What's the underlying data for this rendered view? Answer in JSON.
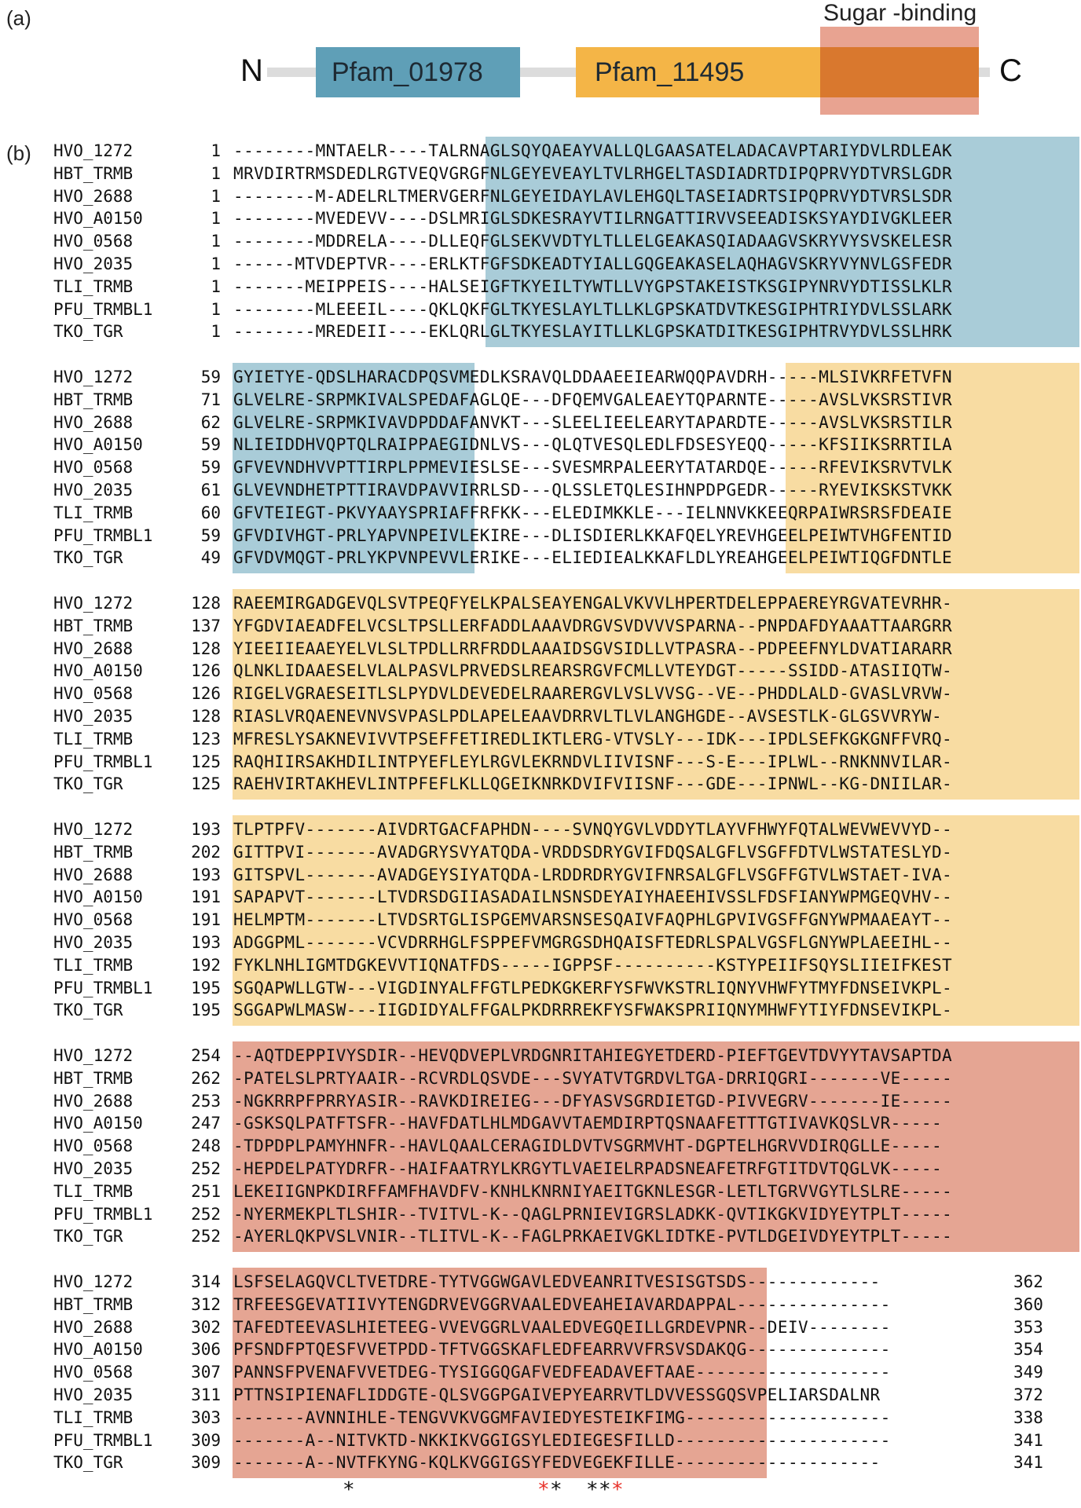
{
  "panel_a": {
    "label": "(a)",
    "n_terminus": "N",
    "c_terminus": "C",
    "domains": [
      {
        "name": "Pfam_01978",
        "color": "#5f9fb7"
      },
      {
        "name": "Pfam_11495",
        "color": "#f4b547"
      }
    ],
    "region": {
      "name": "Sugar -binding",
      "color": "#e8a391"
    },
    "overlap_color": "#d9782e"
  },
  "panel_b": {
    "label": "(b)",
    "colors": {
      "blue": "#a9ccd8",
      "yellow": "#f8dca2",
      "salmon": "#e5a593"
    },
    "blocks": [
      {
        "rows": [
          {
            "name": "HVO_1272",
            "start": "1",
            "seq": "--------MNTAELR----TALRNAGLSQYQAEAYVALLQLGAASATELADACAVPTARIYDVLRDLEAK"
          },
          {
            "name": "HBT_TRMB",
            "start": "1",
            "seq": "MRVDIRTRMSDEDLRGTVEQVGRGFNLGEYEVEAYLTVLRHGELTASDIADRTDIPQPRVYDTVRSLGDR"
          },
          {
            "name": "HVO_2688",
            "start": "1",
            "seq": "--------M-ADELRLTMERVGERFNLGEYEIDAYLAVLEHGQLTASEIADRTSIPQPRVYDTVRSLSDR"
          },
          {
            "name": "HVO_A0150",
            "start": "1",
            "seq": "--------MVEDEVV----DSLMRIGLSDKESRAYVTILRNGATTIRVVSEEADISKSYAYDIVGKLEER"
          },
          {
            "name": "HVO_0568",
            "start": "1",
            "seq": "--------MDDRELA----DLLEQFGLSEKVVDTYLTLLELGEAKASQIADAAGVSKRYVYSVSKELESR"
          },
          {
            "name": "HVO_2035",
            "start": "1",
            "seq": "------MTVDEPTVR----ERLKTFGFSDKEADTYIALLGQGEAKASELAQHAGVSKRYVYNVLGSFEDR"
          },
          {
            "name": "TLI_TRMB",
            "start": "1",
            "seq": "-------MEIPPEIS----HALSEIGFTKYEILTYWTLLVYGPSTAKEISTKSGIPYNRVYDTISSLKLR"
          },
          {
            "name": "PFU_TRMBL1",
            "start": "1",
            "seq": "--------MLEEEIL----QKLQKFGLTKYESLAYLTLLKLGPSKATDVTKESGIPHTRIYDVLSSLARK"
          },
          {
            "name": "TKO_TGR",
            "start": "1",
            "seq": "--------MREDEII----EKLQRLGLTKYESLAYITLLKLGPSKATDITKESGIPHTRVYDVLSSLHRK"
          }
        ]
      },
      {
        "rows": [
          {
            "name": "HVO_1272",
            "start": "59",
            "seq": "GYIETYE-QDSLHARACDPQSVMEDLKSRAVQLDDAAEEIEARWQQPAVDRH-----MLSIVKRFETVFN"
          },
          {
            "name": "HBT_TRMB",
            "start": "71",
            "seq": "GLVELRE-SRPMKIVALSPEDAFAGLQE---DFQEMVGALEAEYTQPARNTE-----AVSLVKSRSTIVR"
          },
          {
            "name": "HVO_2688",
            "start": "62",
            "seq": "GLVELRE-SRPMKIVAVDPDDAFANVKT---SLEELIEELEARYTAPARDTE-----AVSLVKSRSTILR"
          },
          {
            "name": "HVO_A0150",
            "start": "59",
            "seq": "NLIEIDDHVQPTQLRAIPPAEGIDNLVS---QLQTVESQLEDLFDSESYEQQ-----KFSIIKSRRTILA"
          },
          {
            "name": "HVO_0568",
            "start": "59",
            "seq": "GFVEVNDHVVPTTIRPLPPMEVIESLSE---SVESMRPALEERYTATARDQE-----RFEVIKSRVTVLK"
          },
          {
            "name": "HVO_2035",
            "start": "61",
            "seq": "GLVEVNDHETPTTIRAVDPAVVIRRLSD---QLSSLETQLESIHNPDPGEDR-----RYEVIKSKSTVKK"
          },
          {
            "name": "TLI_TRMB",
            "start": "60",
            "seq": "GFVTEIEGT-PKVYAAYSPRIAFFRFKK---ELEDIMKKLE---IELNNVKKEEQRPAIWRSRSFDEAIE"
          },
          {
            "name": "PFU_TRMBL1",
            "start": "59",
            "seq": "GFVDIVHGT-PRLYAPVNPEIVLEKIRE---DLISDIERLKKAFQELYREVHGEELPEIWTVHGFENTID"
          },
          {
            "name": "TKO_TGR",
            "start": "49",
            "seq": "GFVDVMQGT-PRLYKPVNPEVVLERIKE---ELIEDIEALKKAFLDLYREAHGEELPEIWTIQGFDNTLE"
          }
        ]
      },
      {
        "rows": [
          {
            "name": "HVO_1272",
            "start": "128",
            "seq": "RAEEMIRGADGEVQLSVTPEQFYELKPALSEAYENGALVKVVLHPERTDELEPPAEREYRGVATEVRHR-"
          },
          {
            "name": "HBT_TRMB",
            "start": "137",
            "seq": "YFGDVIAEADFELVCSLTPSLLERFADDLAAAVDRGVSVDVVVSPARNA--PNPDAFDYAAATTAARGRR"
          },
          {
            "name": "HVO_2688",
            "start": "128",
            "seq": "YIEEIIEAAEYELVLSLTPDLLRRFRDDLAAAIDSGVSIDLLVTPASRA--PDPEEFNYLDVATIARARR"
          },
          {
            "name": "HVO_A0150",
            "start": "126",
            "seq": "QLNKLIDAAESELVLALPASVLPRVEDSLREARSRGVFCMLLVTEYDGT-----SSIDD-ATASIIQTW-"
          },
          {
            "name": "HVO_0568",
            "start": "126",
            "seq": "RIGELVGRAESEITLSLPYDVLDEVEDELRAARERGVLVSLVVSG--VE--PHDDLALD-GVASLVRVW-"
          },
          {
            "name": "HVO_2035",
            "start": "128",
            "seq": "RIASLVRQAENEVNVSVPASLPDLAPELEAAVDRRVLTLVLANGHGDE--AVSESTLK-GLGSVVRYW-"
          },
          {
            "name": "TLI_TRMB",
            "start": "123",
            "seq": "MFRESLYSAKNEVIVVTPSEFFETIREDLIKTLERG-VTVSLY---IDK---IPDLSEFKGKGNFFVRQ-"
          },
          {
            "name": "PFU_TRMBL1",
            "start": "125",
            "seq": "RAQHIIRSAKHDILINTPYEFLEYLRGVLEKRNDVLIIVISNF---S-E---IPLWL--RNKNNVILAR-"
          },
          {
            "name": "TKO_TGR",
            "start": "125",
            "seq": "RAEHVIRTAKHEVLINTPFEFLKLLQGEIKNRKDVIFVIISNF---GDE---IPNWL--KG-DNIILAR-"
          }
        ]
      },
      {
        "rows": [
          {
            "name": "HVO_1272",
            "start": "193",
            "seq": "TLPTPFV-------AIVDRTGACFAPHDN----SVNQYGVLVDDYTLAYVFHWYFQTALWEVWEVVYD--"
          },
          {
            "name": "HBT_TRMB",
            "start": "202",
            "seq": "GITTPVI-------AVADGRYSVYATQDA-VRDDSDRYGVIFDQSALGFLVSGFFDTVLWSTATESLYD-"
          },
          {
            "name": "HVO_2688",
            "start": "193",
            "seq": "GITSPVL-------AVADGEYSIYATQDA-LRDDRDRYGVIFNRSALGFLVSGFFGTVLWSTAET-IVA-"
          },
          {
            "name": "HVO_A0150",
            "start": "191",
            "seq": "SAPAPVT-------LTVDRSDGIIASADAILNSNSDEYAIYHAEEHIVSSLFDSFIANYWPMGEQVHV--"
          },
          {
            "name": "HVO_0568",
            "start": "191",
            "seq": "HELMPTM-------LTVDSRTGLISPGEMVARSNSESQAIVFAQPHLGPVIVGSFFGNYWPMAAEAYT--"
          },
          {
            "name": "HVO_2035",
            "start": "193",
            "seq": "ADGGPML-------VCVDRRHGLFSPPEFVMGRGSDHQAISFTEDRLSPALVGSFLGNYWPLAEEIHL--"
          },
          {
            "name": "TLI_TRMB",
            "start": "192",
            "seq": "FYKLNHLIGMTDGKEVVTIQNATFDS-----IGPPSF----------KSTYPEIIFSQYSLIIEIFKEST"
          },
          {
            "name": "PFU_TRMBL1",
            "start": "195",
            "seq": "SGQAPWLLGTW---VIGDINYALFFGTLPEDKGKERFYSFWVKSTRLIQNYVHWFYTMYFDNSEIVKPL-"
          },
          {
            "name": "TKO_TGR",
            "start": "195",
            "seq": "SGGAPWLMASW---IIGDIDYALFFGALPKDRRREKFYSFWAKSPRIIQNYMHWFYTIYFDNSEVIKPL-"
          }
        ]
      },
      {
        "rows": [
          {
            "name": "HVO_1272",
            "start": "254",
            "seq": "--AQTDEPPIVYSDIR--HEVQDVEPLVRDGNRITAHIEGYETDERD-PIEFTGEVTDVYYTAVSAPTDA"
          },
          {
            "name": "HBT_TRMB",
            "start": "262",
            "seq": "-PATELSLPRTYAAIR--RCVRDLQSVDE---SVYATVTGRDVLTGA-DRRIQGRI-------VE-----"
          },
          {
            "name": "HVO_2688",
            "start": "253",
            "seq": "-NGKRRPFPRRYASIR--RAVKDIREIEG---DFYASVSGRDIETGD-PIVVEGRV-------IE-----"
          },
          {
            "name": "HVO_A0150",
            "start": "247",
            "seq": "-GSKSQLPATFTSFR--HAVFDATLHLMDGAVVTAEMDIRPTQSNAAFETTTGTIVAVKQSLVR-----"
          },
          {
            "name": "HVO_0568",
            "start": "248",
            "seq": "-TDPDPLPAMYHNFR--HAVLQAALCERAGIDLDVTVSGRMVHT-DGPTELHGRVVDIRQGLLE-----"
          },
          {
            "name": "HVO_2035",
            "start": "252",
            "seq": "-HEPDELPATYDRFR--HAIFAATRYLKRGYTLVAEIELRPADSNEAFETRFGTITDVTQGLVK-----"
          },
          {
            "name": "TLI_TRMB",
            "start": "251",
            "seq": "LEKEIIGNPKDIRFFAMFHAVDFV-KNHLKNRNIYAEITGKNLESGR-LETLTGRVVGYTLSLRE-----"
          },
          {
            "name": "PFU_TRMBL1",
            "start": "252",
            "seq": "-NYERMEKPLTLSHIR--TVITVL-K--QAGLPRNIEVIGRSLADKK-QVTIKGKVIDYEYTPLT-----"
          },
          {
            "name": "TKO_TGR",
            "start": "252",
            "seq": "-AYERLQKPVSLVNIR--TLITVL-K--FAGLPRKAEIVGKLIDTKE-PVTLDGEIVDYEYTPLT-----"
          }
        ]
      },
      {
        "rows": [
          {
            "name": "HVO_1272",
            "start": "314",
            "seq": "LSFSELAGQVCLTVETDRE-TYTVGGWGAVLEDVEANRITVESISGTSDS-------------",
            "end": "362"
          },
          {
            "name": "HBT_TRMB",
            "start": "312",
            "seq": "TRFEESGEVATIIVYTENGDRVEVGGRVAALEDVEAHEIAVARDAPPAL---------------",
            "end": "360"
          },
          {
            "name": "HVO_2688",
            "start": "302",
            "seq": "TAFEDTEEVASLHIETEEG-VVEVGGRLVAALEDVEGQEILLGRDEVPNR--DEIV--------",
            "end": "353"
          },
          {
            "name": "HVO_A0150",
            "start": "306",
            "seq": "PFSNDFPTQESFVVETPDD-TFTVGGSKAFLEDFEARRVVFRSVSDAKQG--------------",
            "end": "354"
          },
          {
            "name": "HVO_0568",
            "start": "307",
            "seq": "PANNSFPVENAFVVETDEG-TYSIGGQGAFVEDFEADAVEFTAAE-------------------",
            "end": "349"
          },
          {
            "name": "HVO_2035",
            "start": "311",
            "seq": "PTTNSIPIENAFLIDDGTE-QLSVGGPGAIVEPYEARRVTLDVVESSGQSVPELIARSDALNR",
            "end": "372"
          },
          {
            "name": "TLI_TRMB",
            "start": "303",
            "seq": "-------AVNNIHLE-TENGVVKVGGMFAVIEDYESTEIKFIMG--------------------",
            "end": "338"
          },
          {
            "name": "PFU_TRMBL1",
            "start": "309",
            "seq": "-------A--NITVKTD-NKKIKVGGIGSYLEDIEGESFILLD---------------------",
            "end": "341"
          },
          {
            "name": "TKO_TGR",
            "start": "309",
            "seq": "-------A--NVTFKYNG-KQLKVGGIGSYFEDVEGEKFILLE--------------------",
            "end": "341"
          }
        ]
      }
    ],
    "conservation_marks": [
      {
        "symbol": "*",
        "color": "#111111"
      },
      {
        "symbol": "*",
        "color": "#e8322a"
      },
      {
        "symbol": "*",
        "color": "#111111"
      },
      {
        "symbol": "*",
        "color": "#111111"
      },
      {
        "symbol": "*",
        "color": "#111111"
      },
      {
        "symbol": "*",
        "color": "#e8322a"
      }
    ]
  }
}
